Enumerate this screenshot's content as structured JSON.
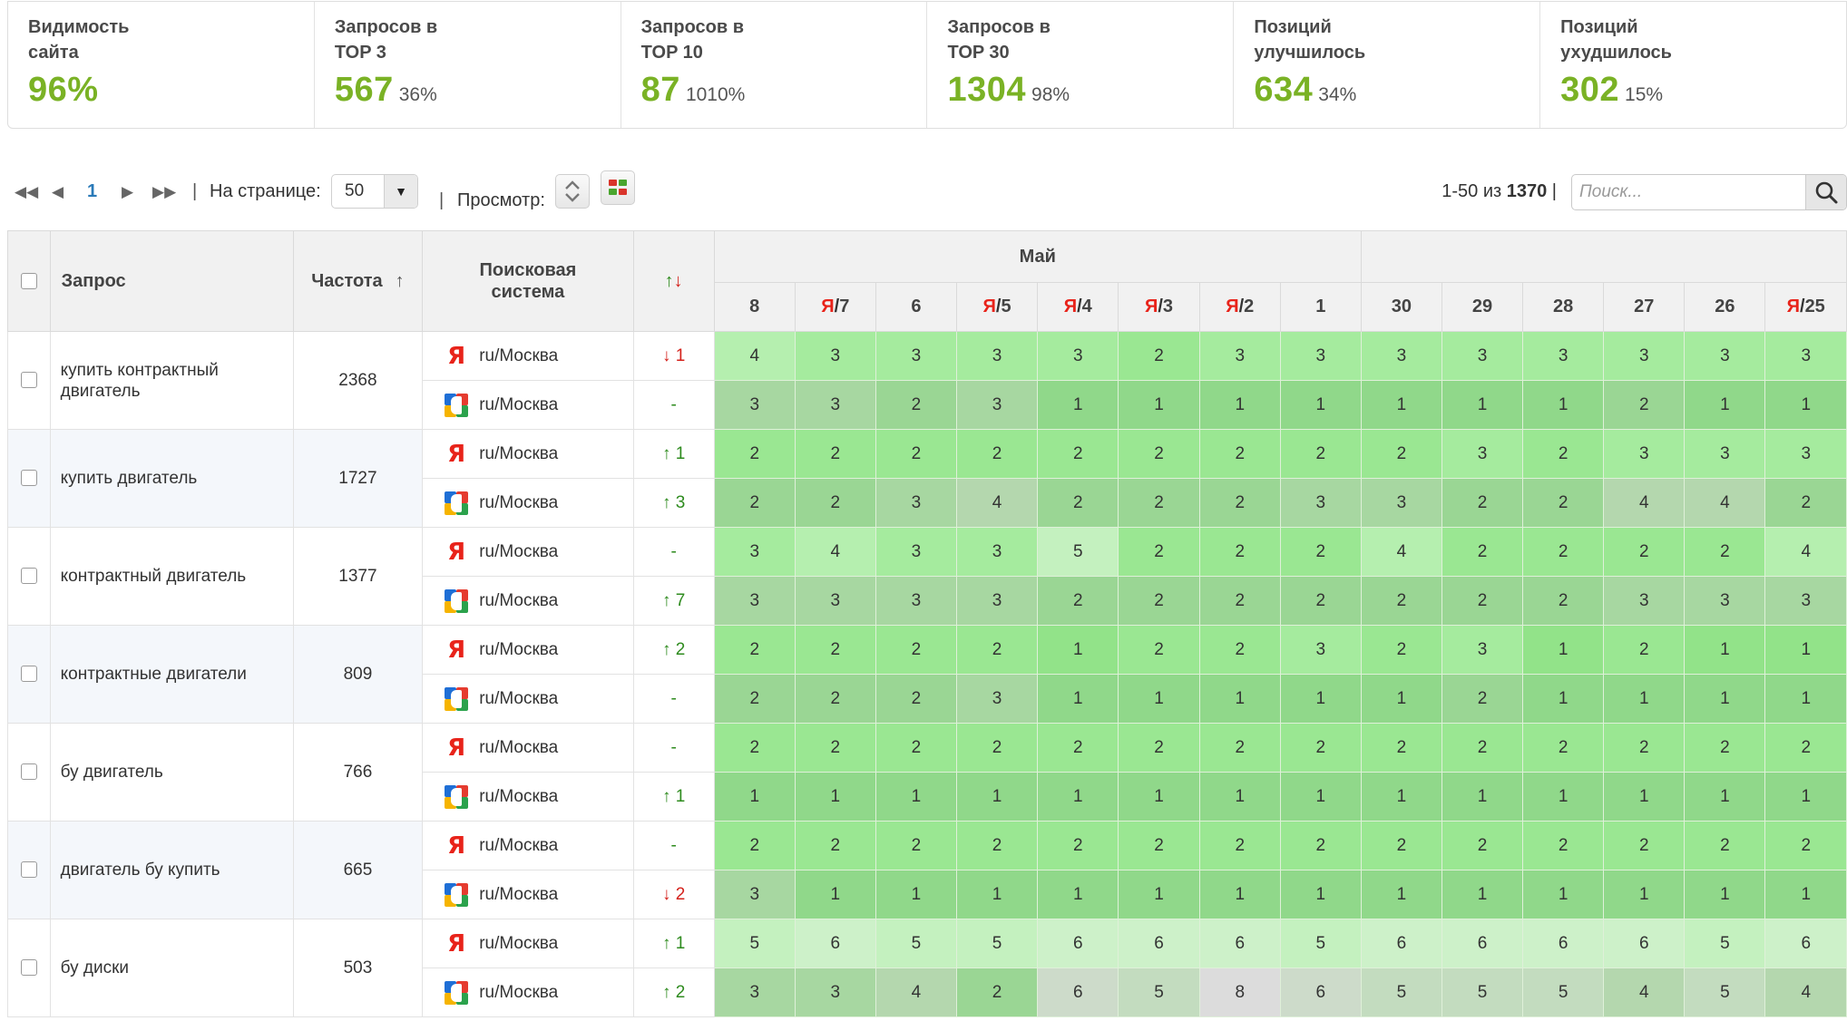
{
  "stats": [
    {
      "label": "Видимость\nсайта",
      "value": "96%",
      "pct": ""
    },
    {
      "label": "Запросов в\nTOP 3",
      "value": "567",
      "pct": "36%"
    },
    {
      "label": "Запросов в\nTOP 10",
      "value": "87",
      "pct": "1010%"
    },
    {
      "label": "Запросов в\nTOP 30",
      "value": "1304",
      "pct": "98%"
    },
    {
      "label": "Позиций\nулучшилось",
      "value": "634",
      "pct": "34%"
    },
    {
      "label": "Позиций\nухудшилось",
      "value": "302",
      "pct": "15%"
    }
  ],
  "toolbar": {
    "first_icon": "first-page-icon",
    "prev_icon": "prev-page-icon",
    "next_icon": "next-page-icon",
    "last_icon": "last-page-icon",
    "current_page": "1",
    "per_page_label": "На странице:",
    "per_page_value": "50",
    "view_label": "Просмотр:",
    "range": "1-50 из",
    "total": "1370",
    "search_placeholder": "Поиск..."
  },
  "table": {
    "headers": {
      "query": "Запрос",
      "frequency": "Частота",
      "sort_arrow": "↑",
      "engine": "Поисковая система",
      "change": "↑↓",
      "month": "Май"
    },
    "days": [
      {
        "prefix": "",
        "num": "8"
      },
      {
        "prefix": "Я",
        "num": "7"
      },
      {
        "prefix": "",
        "num": "6"
      },
      {
        "prefix": "Я",
        "num": "5"
      },
      {
        "prefix": "Я",
        "num": "4"
      },
      {
        "prefix": "Я",
        "num": "3"
      },
      {
        "prefix": "Я",
        "num": "2"
      },
      {
        "prefix": "",
        "num": "1"
      },
      {
        "prefix": "",
        "num": "30"
      },
      {
        "prefix": "",
        "num": "29"
      },
      {
        "prefix": "",
        "num": "28"
      },
      {
        "prefix": "",
        "num": "27"
      },
      {
        "prefix": "",
        "num": "26"
      },
      {
        "prefix": "Я",
        "num": "25"
      }
    ],
    "rows": [
      {
        "query": "купить контрактный двигатель",
        "frequency": "2368",
        "engines": [
          {
            "engine": "yandex",
            "region": "ru/Москва",
            "change_dir": "down",
            "change": "1",
            "positions": [
              "4",
              "3",
              "3",
              "3",
              "3",
              "2",
              "3",
              "3",
              "3",
              "3",
              "3",
              "3",
              "3",
              "3"
            ]
          },
          {
            "engine": "google",
            "region": "ru/Москва",
            "change_dir": "none",
            "change": "-",
            "positions": [
              "3",
              "3",
              "2",
              "3",
              "1",
              "1",
              "1",
              "1",
              "1",
              "1",
              "1",
              "2",
              "1",
              "1"
            ]
          }
        ]
      },
      {
        "query": "купить двигатель",
        "frequency": "1727",
        "engines": [
          {
            "engine": "yandex",
            "region": "ru/Москва",
            "change_dir": "up",
            "change": "1",
            "positions": [
              "2",
              "2",
              "2",
              "2",
              "2",
              "2",
              "2",
              "2",
              "2",
              "3",
              "2",
              "3",
              "3",
              "3"
            ]
          },
          {
            "engine": "google",
            "region": "ru/Москва",
            "change_dir": "up",
            "change": "3",
            "positions": [
              "2",
              "2",
              "3",
              "4",
              "2",
              "2",
              "2",
              "3",
              "3",
              "2",
              "2",
              "4",
              "4",
              "2"
            ]
          }
        ]
      },
      {
        "query": "контрактный двигатель",
        "frequency": "1377",
        "engines": [
          {
            "engine": "yandex",
            "region": "ru/Москва",
            "change_dir": "none",
            "change": "-",
            "positions": [
              "3",
              "4",
              "3",
              "3",
              "5",
              "2",
              "2",
              "2",
              "4",
              "2",
              "2",
              "2",
              "2",
              "4"
            ]
          },
          {
            "engine": "google",
            "region": "ru/Москва",
            "change_dir": "up",
            "change": "7",
            "positions": [
              "3",
              "3",
              "3",
              "3",
              "2",
              "2",
              "2",
              "2",
              "2",
              "2",
              "2",
              "3",
              "3",
              "3"
            ]
          }
        ]
      },
      {
        "query": "контрактные двигатели",
        "frequency": "809",
        "engines": [
          {
            "engine": "yandex",
            "region": "ru/Москва",
            "change_dir": "up",
            "change": "2",
            "positions": [
              "2",
              "2",
              "2",
              "2",
              "1",
              "2",
              "2",
              "3",
              "2",
              "3",
              "1",
              "2",
              "1",
              "1"
            ]
          },
          {
            "engine": "google",
            "region": "ru/Москва",
            "change_dir": "none",
            "change": "-",
            "positions": [
              "2",
              "2",
              "2",
              "3",
              "1",
              "1",
              "1",
              "1",
              "1",
              "2",
              "1",
              "1",
              "1",
              "1"
            ]
          }
        ]
      },
      {
        "query": "бу двигатель",
        "frequency": "766",
        "engines": [
          {
            "engine": "yandex",
            "region": "ru/Москва",
            "change_dir": "none",
            "change": "-",
            "positions": [
              "2",
              "2",
              "2",
              "2",
              "2",
              "2",
              "2",
              "2",
              "2",
              "2",
              "2",
              "2",
              "2",
              "2"
            ]
          },
          {
            "engine": "google",
            "region": "ru/Москва",
            "change_dir": "up",
            "change": "1",
            "positions": [
              "1",
              "1",
              "1",
              "1",
              "1",
              "1",
              "1",
              "1",
              "1",
              "1",
              "1",
              "1",
              "1",
              "1"
            ]
          }
        ]
      },
      {
        "query": "двигатель бу купить",
        "frequency": "665",
        "engines": [
          {
            "engine": "yandex",
            "region": "ru/Москва",
            "change_dir": "none",
            "change": "-",
            "positions": [
              "2",
              "2",
              "2",
              "2",
              "2",
              "2",
              "2",
              "2",
              "2",
              "2",
              "2",
              "2",
              "2",
              "2"
            ]
          },
          {
            "engine": "google",
            "region": "ru/Москва",
            "change_dir": "down",
            "change": "2",
            "positions": [
              "3",
              "1",
              "1",
              "1",
              "1",
              "1",
              "1",
              "1",
              "1",
              "1",
              "1",
              "1",
              "1",
              "1"
            ]
          }
        ]
      },
      {
        "query": "бу диски",
        "frequency": "503",
        "engines": [
          {
            "engine": "yandex",
            "region": "ru/Москва",
            "change_dir": "up",
            "change": "1",
            "positions": [
              "5",
              "6",
              "5",
              "5",
              "6",
              "6",
              "6",
              "5",
              "6",
              "6",
              "6",
              "6",
              "5",
              "6"
            ]
          },
          {
            "engine": "google",
            "region": "ru/Москва",
            "change_dir": "up",
            "change": "2",
            "positions": [
              "3",
              "3",
              "4",
              "2",
              "6",
              "5",
              "8",
              "6",
              "5",
              "5",
              "5",
              "4",
              "5",
              "4"
            ]
          }
        ]
      }
    ]
  },
  "colors": {
    "accent_green": "#7ab225",
    "link_blue": "#2a7ab8",
    "yandex_red": "#e8231a",
    "up_green": "#2e8b1e",
    "down_red": "#d4211b"
  }
}
